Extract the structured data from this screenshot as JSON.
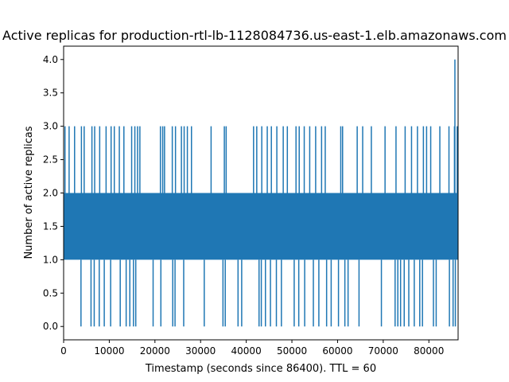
{
  "chart_data": {
    "type": "line",
    "title": "Active replicas for  production-rtl-lb-1128084736.us-east-1.elb.amazonaws.com",
    "xlabel": "Timestamp (seconds since 86400). TTL = 60",
    "ylabel": "Number of active replicas",
    "xlim": [
      0,
      86400
    ],
    "ylim": [
      -0.2,
      4.2
    ],
    "x_ticks": [
      0,
      10000,
      20000,
      30000,
      40000,
      50000,
      60000,
      70000,
      80000
    ],
    "x_tick_labels": [
      "0",
      "10000",
      "20000",
      "30000",
      "40000",
      "50000",
      "60000",
      "70000",
      "80000"
    ],
    "y_ticks": [
      0.0,
      0.5,
      1.0,
      1.5,
      2.0,
      2.5,
      3.0,
      3.5,
      4.0
    ],
    "y_tick_labels": [
      "0.0",
      "0.5",
      "1.0",
      "1.5",
      "2.0",
      "2.5",
      "3.0",
      "3.5",
      "4.0"
    ],
    "grid": false,
    "legend": "none",
    "color": "#1f77b4",
    "ttl_seconds": 60,
    "series": [
      {
        "base_oscillation": [
          1,
          2
        ],
        "spikes_to_3": [
          300,
          1200,
          2400,
          3900,
          4500,
          6200,
          6800,
          7900,
          9300,
          10400,
          11100,
          12200,
          13200,
          14900,
          15600,
          16200,
          16700,
          21200,
          21700,
          22100,
          23800,
          24500,
          25800,
          26400,
          27100,
          28000,
          32300,
          35200,
          35600,
          41600,
          42300,
          43400,
          44600,
          45500,
          46700,
          48100,
          49000,
          50900,
          51600,
          52700,
          53900,
          55200,
          56500,
          57300,
          60700,
          61100,
          64300,
          65500,
          67400,
          70400,
          72800,
          74800,
          76200,
          77500,
          78800,
          79500,
          80400,
          82400,
          84400,
          85600,
          86200
        ],
        "dips_to_0": [
          3800,
          6000,
          6700,
          7800,
          8900,
          10300,
          12400,
          13700,
          14500,
          15300,
          15800,
          19600,
          21300,
          23900,
          24400,
          26300,
          30800,
          34900,
          35400,
          38200,
          39000,
          42800,
          43300,
          44200,
          45300,
          46600,
          47700,
          50500,
          51500,
          52800,
          54700,
          55900,
          57600,
          58600,
          60200,
          61600,
          62300,
          64700,
          69600,
          72600,
          73200,
          73800,
          74600,
          75600,
          76800,
          78000,
          78600,
          81000,
          81600,
          84500,
          85300,
          85800
        ],
        "spikes_to_4": [
          85700
        ]
      }
    ]
  }
}
